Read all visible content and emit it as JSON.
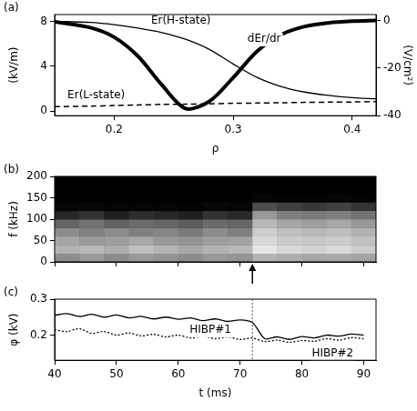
{
  "chart_data": [
    {
      "type": "line",
      "panel": "(a)",
      "x_label": "ρ",
      "y_label": "(kV/m)",
      "y2_label": "(V/cm²)",
      "x": [
        0.15,
        0.18,
        0.2,
        0.22,
        0.24,
        0.26,
        0.28,
        0.3,
        0.32,
        0.34,
        0.36,
        0.38,
        0.4,
        0.42
      ],
      "series": [
        {
          "name": "Er(H-state)",
          "color": "#000000",
          "line_style": "solid",
          "values": [
            8.0,
            7.9,
            7.7,
            7.4,
            7.0,
            6.4,
            5.5,
            4.2,
            3.0,
            2.2,
            1.7,
            1.4,
            1.2,
            1.1
          ]
        },
        {
          "name": "Er(L-state)",
          "color": "#000000",
          "line_style": "dashed",
          "values": [
            0.4,
            0.45,
            0.5,
            0.55,
            0.6,
            0.62,
            0.65,
            0.7,
            0.72,
            0.75,
            0.78,
            0.8,
            0.82,
            0.85
          ]
        },
        {
          "name": "dEr/dr",
          "color": "#000000",
          "line_style": "thick",
          "axis": "y2",
          "values": [
            -0.5,
            -3,
            -7,
            -15,
            -27,
            -37,
            -34,
            -24,
            -13,
            -6,
            -2.5,
            -1,
            -0.3,
            0
          ]
        }
      ],
      "xlim": [
        0.15,
        0.42
      ],
      "xticks": [
        0.2,
        0.3,
        0.4
      ],
      "ylim": [
        -0.4,
        8.6
      ],
      "yticks": [
        0,
        4,
        8
      ],
      "y2lim": [
        -40,
        2.5
      ],
      "y2ticks": [
        -40,
        -20,
        0
      ],
      "grid": false
    },
    {
      "type": "heatmap",
      "panel": "(b)",
      "y_label": "f (kHz)",
      "t_edges": [
        40,
        44,
        48,
        52,
        56,
        60,
        64,
        68,
        72,
        76,
        80,
        84,
        88,
        92
      ],
      "f_edges": [
        0,
        20,
        40,
        60,
        80,
        100,
        120,
        140,
        160,
        180,
        200
      ],
      "cells": [
        [
          0.55,
          0.7,
          0.65,
          0.55,
          0.4,
          0.15,
          0.02,
          0,
          0,
          0
        ],
        [
          0.6,
          0.72,
          0.6,
          0.5,
          0.45,
          0.2,
          0.03,
          0,
          0,
          0
        ],
        [
          0.55,
          0.68,
          0.62,
          0.55,
          0.38,
          0.12,
          0.02,
          0,
          0,
          0
        ],
        [
          0.6,
          0.75,
          0.66,
          0.5,
          0.42,
          0.18,
          0.02,
          0,
          0,
          0
        ],
        [
          0.58,
          0.7,
          0.6,
          0.52,
          0.4,
          0.15,
          0.02,
          0,
          0,
          0
        ],
        [
          0.55,
          0.66,
          0.58,
          0.48,
          0.36,
          0.12,
          0.01,
          0,
          0,
          0
        ],
        [
          0.6,
          0.7,
          0.62,
          0.55,
          0.42,
          0.2,
          0.03,
          0,
          0,
          0
        ],
        [
          0.58,
          0.72,
          0.64,
          0.5,
          0.4,
          0.16,
          0.02,
          0,
          0,
          0
        ],
        [
          0.7,
          0.9,
          0.85,
          0.8,
          0.72,
          0.6,
          0.3,
          0.02,
          0,
          0
        ],
        [
          0.68,
          0.85,
          0.8,
          0.75,
          0.65,
          0.5,
          0.25,
          0.01,
          0,
          0
        ],
        [
          0.65,
          0.82,
          0.78,
          0.72,
          0.62,
          0.48,
          0.22,
          0.01,
          0,
          0
        ],
        [
          0.66,
          0.85,
          0.8,
          0.74,
          0.66,
          0.5,
          0.25,
          0.02,
          0,
          0
        ],
        [
          0.64,
          0.8,
          0.76,
          0.7,
          0.6,
          0.45,
          0.2,
          0.01,
          0,
          0
        ]
      ],
      "xlim": [
        40,
        92
      ],
      "xticks": [
        40,
        50,
        60,
        70,
        80,
        90
      ],
      "ylim": [
        0,
        200
      ],
      "yticks": [
        0,
        50,
        100,
        150,
        200
      ],
      "tick_labels": "y",
      "grid": false,
      "arrow_t": 72
    },
    {
      "type": "line",
      "panel": "(c)",
      "x_label": "t (ms)",
      "y_label": "φ (kV)",
      "x": [
        40,
        42,
        44,
        46,
        48,
        50,
        52,
        54,
        56,
        58,
        60,
        62,
        64,
        66,
        68,
        70,
        72,
        74,
        76,
        78,
        80,
        82,
        84,
        86,
        88,
        90
      ],
      "series": [
        {
          "name": "HIBP#1",
          "color": "#000000",
          "line_style": "solid",
          "values": [
            0.255,
            0.26,
            0.252,
            0.258,
            0.25,
            0.256,
            0.248,
            0.252,
            0.245,
            0.25,
            0.244,
            0.248,
            0.24,
            0.245,
            0.238,
            0.242,
            0.235,
            0.19,
            0.195,
            0.188,
            0.196,
            0.192,
            0.2,
            0.197,
            0.203,
            0.2
          ]
        },
        {
          "name": "HIBP#2",
          "color": "#000000",
          "line_style": "dotted",
          "values": [
            0.215,
            0.21,
            0.218,
            0.205,
            0.21,
            0.2,
            0.206,
            0.198,
            0.202,
            0.195,
            0.2,
            0.192,
            0.197,
            0.19,
            0.195,
            0.188,
            0.192,
            0.182,
            0.186,
            0.18,
            0.185,
            0.183,
            0.19,
            0.186,
            0.193,
            0.19
          ]
        }
      ],
      "xlim": [
        40,
        92
      ],
      "xticks": [
        40,
        50,
        60,
        70,
        80,
        90
      ],
      "ylim": [
        0.13,
        0.3
      ],
      "yticks": [
        0.2,
        0.3
      ],
      "grid": false,
      "marker_t": 72
    }
  ]
}
